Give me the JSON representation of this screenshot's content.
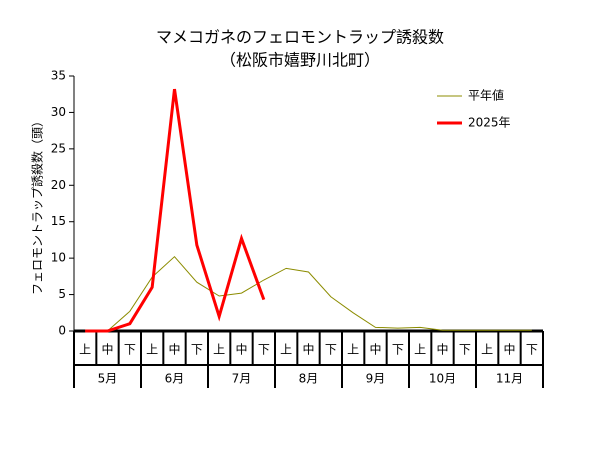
{
  "chart_data": {
    "type": "line",
    "title": "マメコガネのフェロモントラップ誘殺数",
    "subtitle": "（松阪市嬉野川北町）",
    "y_label": "フェロモントラップ誘殺数（頭）",
    "categories": [
      "上",
      "中",
      "下",
      "上",
      "中",
      "下",
      "上",
      "中",
      "下",
      "上",
      "中",
      "下",
      "上",
      "中",
      "下",
      "上",
      "中",
      "下",
      "上",
      "中",
      "下"
    ],
    "groups": [
      "5月",
      "6月",
      "7月",
      "8月",
      "9月",
      "10月",
      "11月"
    ],
    "series": [
      {
        "name": "平年値",
        "color": "#8c8c00",
        "width": 1,
        "values": [
          0,
          0,
          2.7,
          7.4,
          10.2,
          6.7,
          4.8,
          5.2,
          7.0,
          8.6,
          8.1,
          4.7,
          2.5,
          0.5,
          0.4,
          0.5,
          0.1,
          0.1,
          0.1,
          0.1,
          0.1
        ]
      },
      {
        "name": "2025年",
        "color": "#ff0000",
        "width": 3,
        "values": [
          0,
          0,
          1,
          6,
          33.2,
          11.8,
          2,
          12.7,
          4.3,
          null,
          null,
          null,
          null,
          null,
          null,
          null,
          null,
          null,
          null,
          null,
          null
        ]
      }
    ],
    "ylim": [
      0,
      35
    ],
    "yticks": [
      0,
      5,
      10,
      15,
      20,
      25,
      30,
      35
    ],
    "grid": false,
    "legend": "upper right"
  }
}
